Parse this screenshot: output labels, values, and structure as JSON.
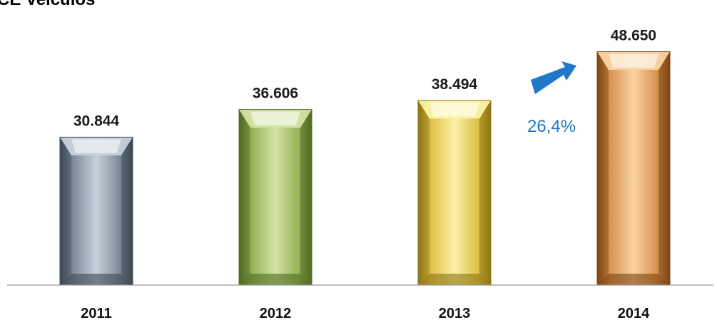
{
  "title": "CE Veículos",
  "growth": {
    "label": "26,4%",
    "color": "#1f78c8"
  },
  "chart_data": {
    "type": "bar",
    "title": "CE Veículos",
    "xlabel": "",
    "ylabel": "",
    "categories": [
      "2011",
      "2012",
      "2013",
      "2014"
    ],
    "values": [
      30844,
      36606,
      38494,
      48650
    ],
    "value_labels": [
      "30.844",
      "36.606",
      "38.494",
      "48.650"
    ],
    "ylim": [
      0,
      52000
    ],
    "grid": false,
    "legend": "none",
    "bar_colors": [
      {
        "light": "#c7d1db",
        "mid": "#7e8b99",
        "dark": "#3f4852"
      },
      {
        "light": "#d4e2a4",
        "mid": "#97b258",
        "dark": "#4f6a22"
      },
      {
        "light": "#fbf2a8",
        "mid": "#ddc047",
        "dark": "#8d7513"
      },
      {
        "light": "#f9d3a4",
        "mid": "#d89350",
        "dark": "#7e4512"
      }
    ]
  }
}
